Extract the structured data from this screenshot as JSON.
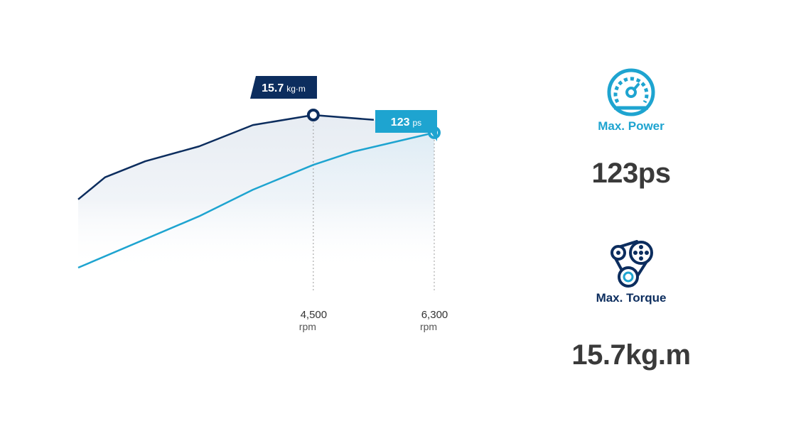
{
  "chart_data": {
    "type": "line",
    "x_unit": "rpm",
    "x_ticks": [
      {
        "value": 4500,
        "label": "4,500",
        "unit": "rpm"
      },
      {
        "value": 6300,
        "label": "6,300",
        "unit": "rpm"
      }
    ],
    "series": [
      {
        "key": "torque",
        "points": [
          [
            1000,
            13.6
          ],
          [
            1400,
            14.15
          ],
          [
            2000,
            14.55
          ],
          [
            2800,
            14.92
          ],
          [
            3600,
            15.45
          ],
          [
            4500,
            15.7
          ],
          [
            5400,
            15.58
          ]
        ],
        "peak": {
          "x": 4500,
          "y": 15.7,
          "value": "15.7",
          "unit": "kg·m"
        },
        "color": "#0c2d5e"
      },
      {
        "key": "power",
        "points": [
          [
            1000,
            11.9
          ],
          [
            2800,
            13.18
          ],
          [
            3600,
            13.84
          ],
          [
            4500,
            14.46
          ],
          [
            5100,
            14.79
          ],
          [
            6300,
            15.26
          ]
        ],
        "peak": {
          "x": 6300,
          "y": 15.26,
          "value": "123",
          "unit": "ps"
        },
        "color": "#1ea4d0"
      }
    ]
  },
  "power": {
    "label": "Max. Power",
    "value": "123ps",
    "icon": "speedometer-icon",
    "color": "#1ea4d0"
  },
  "torque": {
    "label": "Max. Torque",
    "value": "15.7kg.m",
    "icon": "belt-pulley-icon",
    "color": "#0c2d5e"
  }
}
